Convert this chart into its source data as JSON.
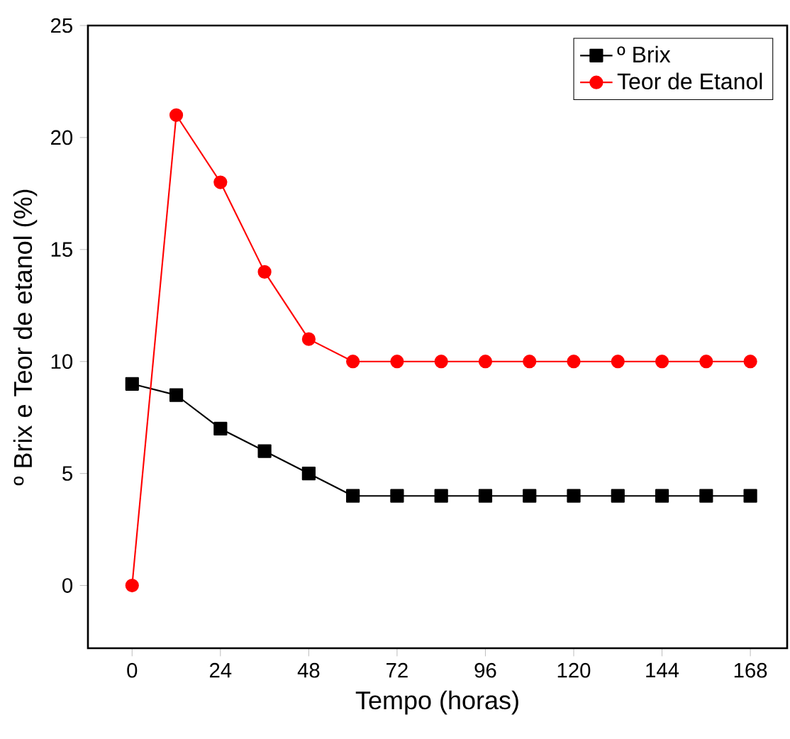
{
  "chart_data": {
    "type": "line",
    "xlabel": "Tempo (horas)",
    "ylabel": "º Brix e Teor de etanol (%)",
    "x": [
      0,
      12,
      24,
      36,
      48,
      60,
      72,
      84,
      96,
      108,
      120,
      132,
      144,
      156,
      168
    ],
    "series": [
      {
        "name": "º Brix",
        "color": "#000000",
        "marker": "square",
        "values": [
          9,
          8.5,
          7,
          6,
          5,
          4,
          4,
          4,
          4,
          4,
          4,
          4,
          4,
          4,
          4
        ]
      },
      {
        "name": "Teor de Etanol",
        "color": "#ff0000",
        "marker": "circle",
        "values": [
          0,
          21,
          18,
          14,
          11,
          10,
          10,
          10,
          10,
          10,
          10,
          10,
          10,
          10,
          10
        ]
      }
    ],
    "xlim": [
      -12,
      178
    ],
    "ylim": [
      -2.8,
      25
    ],
    "xticks": [
      0,
      24,
      48,
      72,
      96,
      120,
      144,
      168
    ],
    "yticks": [
      0,
      5,
      10,
      15,
      20,
      25
    ],
    "legend": "top right",
    "grid": false
  }
}
